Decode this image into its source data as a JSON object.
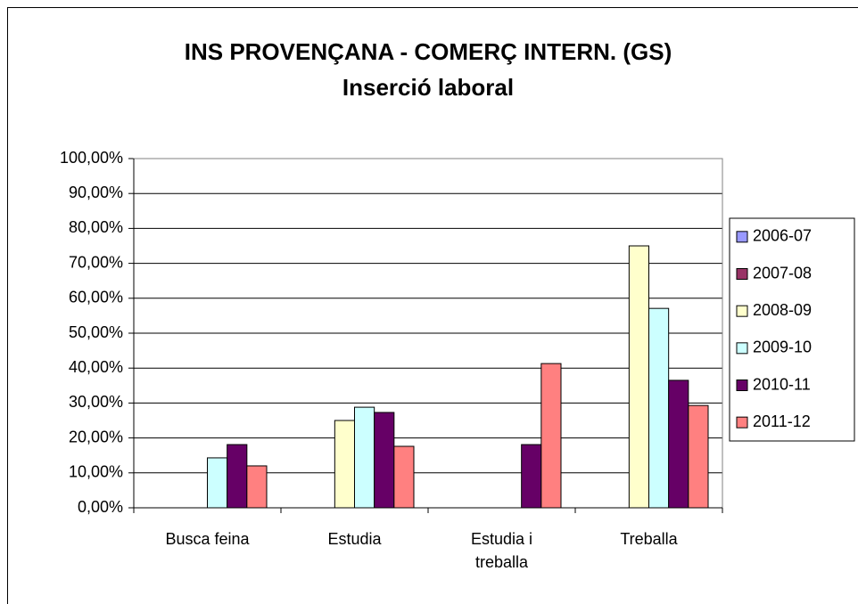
{
  "chart_data": {
    "type": "bar",
    "title": "INS PROVENÇANA - COMERÇ INTERN. (GS)",
    "subtitle": "Inserció laboral",
    "categories": [
      "Busca feina",
      "Estudia",
      "Estudia i treballa",
      "Treballa"
    ],
    "series": [
      {
        "name": "2006-07",
        "color": "#9999ff",
        "values": [
          null,
          null,
          null,
          null
        ]
      },
      {
        "name": "2007-08",
        "color": "#993366",
        "values": [
          null,
          null,
          null,
          null
        ]
      },
      {
        "name": "2008-09",
        "color": "#ffffcc",
        "values": [
          null,
          25,
          null,
          75
        ]
      },
      {
        "name": "2009-10",
        "color": "#ccffff",
        "values": [
          14.3,
          28.8,
          null,
          57.1
        ]
      },
      {
        "name": "2010-11",
        "color": "#660066",
        "values": [
          18.1,
          27.3,
          18.1,
          36.5
        ]
      },
      {
        "name": "2011-12",
        "color": "#ff8080",
        "values": [
          12,
          17.6,
          41.3,
          29.3
        ]
      }
    ],
    "ylim": [
      0,
      100
    ],
    "yticks": [
      {
        "value": 0,
        "label": "0,00%"
      },
      {
        "value": 10,
        "label": "10,00%"
      },
      {
        "value": 20,
        "label": "20,00%"
      },
      {
        "value": 30,
        "label": "30,00%"
      },
      {
        "value": 40,
        "label": "40,00%"
      },
      {
        "value": 50,
        "label": "50,00%"
      },
      {
        "value": 60,
        "label": "60,00%"
      },
      {
        "value": 70,
        "label": "70,00%"
      },
      {
        "value": 80,
        "label": "80,00%"
      },
      {
        "value": 90,
        "label": "90,00%"
      },
      {
        "value": 100,
        "label": "100,00%"
      }
    ],
    "grid": true,
    "legend": "right"
  }
}
